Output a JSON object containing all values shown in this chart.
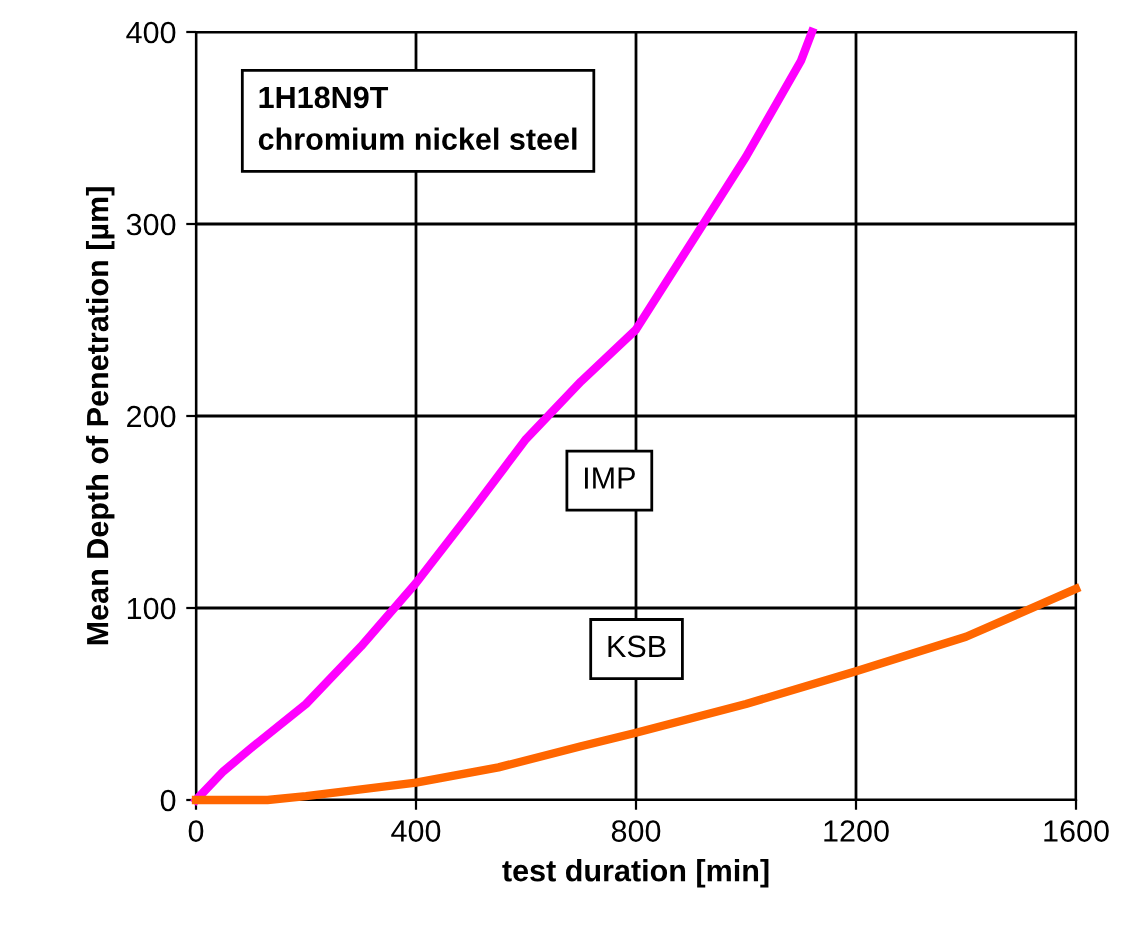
{
  "chart_data": {
    "type": "line",
    "xlabel": "test duration [min]",
    "ylabel": "Mean Depth of Penetration [µm]",
    "annotations": [
      "1H18N9T\nchromium nickel steel"
    ],
    "xlim": [
      0,
      1600
    ],
    "xticks": [
      0,
      400,
      800,
      1200,
      1600
    ],
    "ylim": [
      0,
      400
    ],
    "yticks": [
      0,
      100,
      200,
      300,
      400
    ],
    "grid": true,
    "line_style": "solid",
    "series": [
      {
        "name": "IMP",
        "color": "#ff00ff",
        "x": [
          0,
          50,
          100,
          200,
          300,
          400,
          500,
          600,
          700,
          800,
          900,
          1000,
          1100,
          1120
        ],
        "values": [
          0,
          15,
          27,
          50,
          80,
          113,
          150,
          188,
          218,
          245,
          290,
          335,
          385,
          400
        ]
      },
      {
        "name": "KSB",
        "color": "#ff6600",
        "x": [
          0,
          130,
          200,
          400,
          550,
          700,
          800,
          1000,
          1200,
          1400,
          1600
        ],
        "values": [
          0,
          0,
          2,
          9,
          17,
          28,
          35,
          50,
          67,
          85,
          110
        ]
      }
    ]
  }
}
